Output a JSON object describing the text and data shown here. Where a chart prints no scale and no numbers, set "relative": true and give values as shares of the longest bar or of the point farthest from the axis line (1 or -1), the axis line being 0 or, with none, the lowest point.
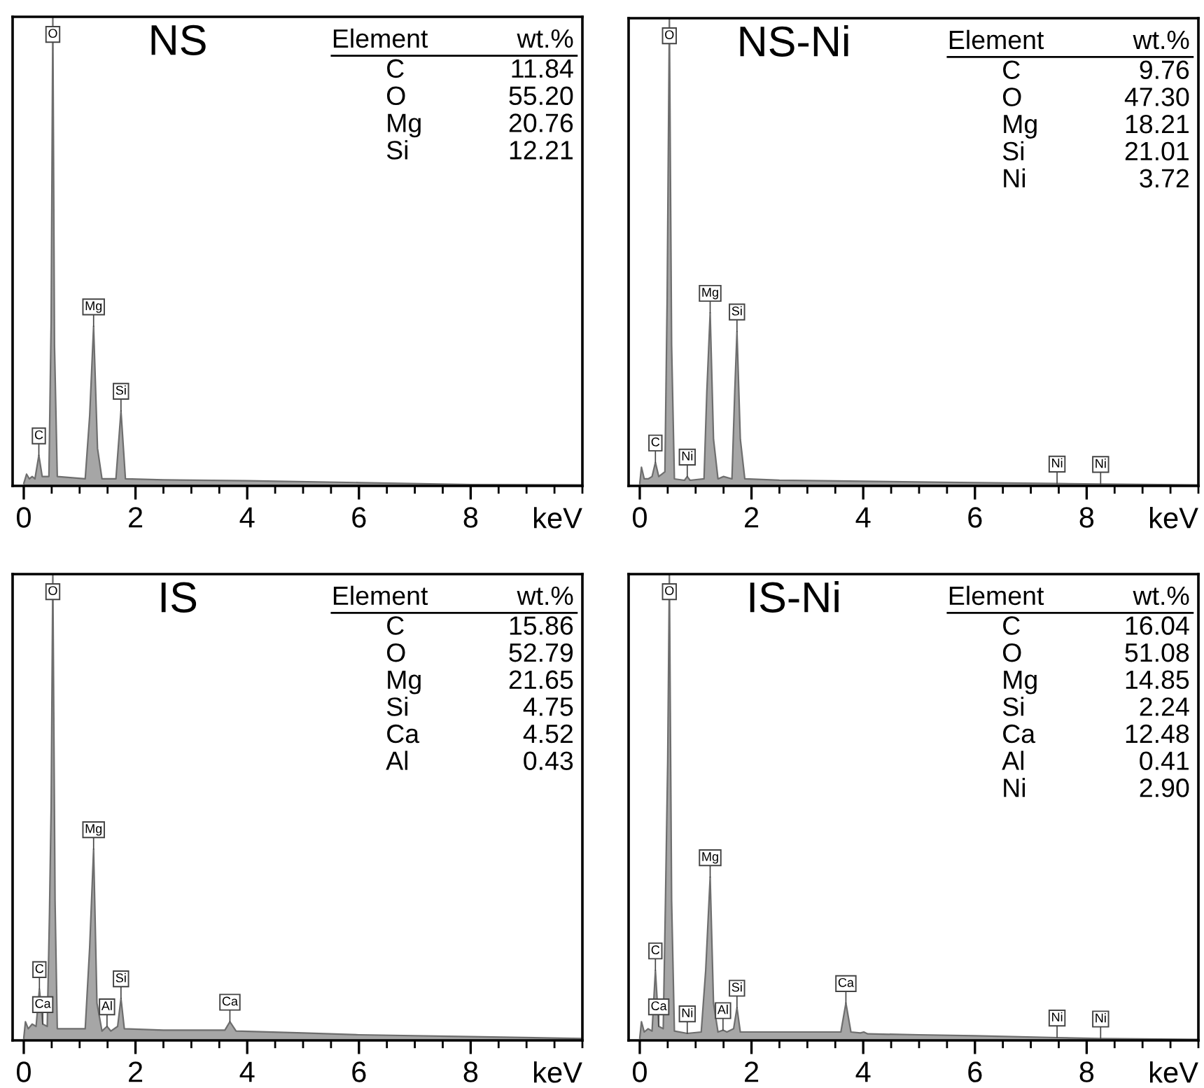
{
  "chart_data": [
    {
      "type": "area",
      "title": "NS",
      "relative": true,
      "xlabel": "keV",
      "xlim": [
        -0.2,
        10
      ],
      "xticks": [
        0,
        2,
        4,
        6,
        8
      ],
      "tick_labels": "x",
      "grid": false,
      "series": [
        {
          "color": "#a6a6a6",
          "x": [
            0,
            0.05,
            0.1,
            0.15,
            0.2,
            0.27,
            0.33,
            0.45,
            0.49,
            0.52,
            0.55,
            0.6,
            1.1,
            1.18,
            1.25,
            1.32,
            1.4,
            1.65,
            1.74,
            1.82,
            2.5,
            4,
            6,
            8,
            10
          ],
          "values": [
            0.005,
            0.025,
            0.015,
            0.02,
            0.015,
            0.065,
            0.02,
            0.02,
            0.35,
            1.0,
            0.3,
            0.02,
            0.015,
            0.15,
            0.34,
            0.08,
            0.015,
            0.015,
            0.16,
            0.015,
            0.013,
            0.011,
            0.007,
            0.003,
            0.002
          ]
        }
      ],
      "annotations": [
        {
          "text": "O",
          "x": 0.52,
          "y": 1.0
        },
        {
          "text": "C",
          "x": 0.27,
          "y": 0.065
        },
        {
          "text": "Mg",
          "x": 1.25,
          "y": 0.34
        },
        {
          "text": "Si",
          "x": 1.74,
          "y": 0.16
        },
        "Element",
        "wt.%",
        "C",
        "11.84",
        "O",
        "55.20",
        "Mg",
        "20.76",
        "Si",
        "12.21"
      ]
    },
    {
      "type": "area",
      "title": "NS-Ni",
      "relative": true,
      "xlabel": "keV",
      "xlim": [
        -0.2,
        10
      ],
      "xticks": [
        0,
        2,
        4,
        6,
        8
      ],
      "tick_labels": "x",
      "grid": false,
      "series": [
        {
          "color": "#a6a6a6",
          "x": [
            0,
            0.03,
            0.08,
            0.15,
            0.22,
            0.28,
            0.34,
            0.45,
            0.49,
            0.53,
            0.57,
            0.62,
            0.8,
            0.85,
            0.9,
            1.15,
            1.2,
            1.26,
            1.32,
            1.4,
            1.5,
            1.65,
            1.7,
            1.74,
            1.8,
            1.88,
            2.5,
            4,
            6,
            7.47,
            8.25,
            10
          ],
          "values": [
            0.005,
            0.04,
            0.015,
            0.015,
            0.02,
            0.05,
            0.02,
            0.03,
            0.4,
            1.0,
            0.3,
            0.015,
            0.012,
            0.02,
            0.012,
            0.015,
            0.2,
            0.37,
            0.1,
            0.015,
            0.02,
            0.015,
            0.2,
            0.33,
            0.1,
            0.015,
            0.012,
            0.01,
            0.007,
            0.005,
            0.004,
            0.002
          ]
        }
      ],
      "annotations": [
        {
          "text": "O",
          "x": 0.53,
          "y": 1.0
        },
        {
          "text": "C",
          "x": 0.28,
          "y": 0.05
        },
        {
          "text": "Ni",
          "x": 0.85,
          "y": 0.02
        },
        {
          "text": "Mg",
          "x": 1.26,
          "y": 0.37
        },
        {
          "text": "Si",
          "x": 1.74,
          "y": 0.33
        },
        {
          "text": "Ni",
          "x": 7.47,
          "y": 0.005
        },
        {
          "text": "Ni",
          "x": 8.25,
          "y": 0.004
        },
        "Element",
        "wt.%",
        "C",
        "9.76",
        "O",
        "47.30",
        "Mg",
        "18.21",
        "Si",
        "21.01",
        "Ni",
        "3.72"
      ]
    },
    {
      "type": "area",
      "title": "IS",
      "relative": true,
      "xlabel": "keV",
      "xlim": [
        -0.2,
        10
      ],
      "xticks": [
        0,
        2,
        4,
        6,
        8
      ],
      "tick_labels": "x",
      "grid": false,
      "series": [
        {
          "color": "#a6a6a6",
          "x": [
            0,
            0.03,
            0.08,
            0.15,
            0.22,
            0.28,
            0.34,
            0.42,
            0.46,
            0.49,
            0.52,
            0.56,
            0.6,
            1.1,
            1.18,
            1.25,
            1.31,
            1.4,
            1.49,
            1.56,
            1.68,
            1.74,
            1.8,
            2.5,
            3.6,
            3.69,
            3.8,
            5,
            6,
            8,
            10
          ],
          "values": [
            0.005,
            0.04,
            0.025,
            0.035,
            0.03,
            0.11,
            0.035,
            0.03,
            0.27,
            0.5,
            1.0,
            0.3,
            0.025,
            0.025,
            0.2,
            0.41,
            0.08,
            0.02,
            0.03,
            0.02,
            0.03,
            0.09,
            0.025,
            0.022,
            0.022,
            0.04,
            0.02,
            0.016,
            0.012,
            0.008,
            0.004
          ]
        }
      ],
      "annotations": [
        {
          "text": "O",
          "x": 0.52,
          "y": 1.0
        },
        {
          "text": "C",
          "x": 0.28,
          "y": 0.11
        },
        {
          "text": "Ca",
          "x": 0.34,
          "y": 0.035
        },
        {
          "text": "Mg",
          "x": 1.25,
          "y": 0.41
        },
        {
          "text": "Al",
          "x": 1.49,
          "y": 0.03
        },
        {
          "text": "Si",
          "x": 1.74,
          "y": 0.09
        },
        {
          "text": "Ca",
          "x": 3.69,
          "y": 0.04
        },
        "Element",
        "wt.%",
        "C",
        "15.86",
        "O",
        "52.79",
        "Mg",
        "21.65",
        "Si",
        "4.75",
        "Ca",
        "4.52",
        "Al",
        "0.43"
      ]
    },
    {
      "type": "area",
      "title": "IS-Ni",
      "relative": true,
      "xlabel": "keV",
      "xlim": [
        -0.2,
        10
      ],
      "xticks": [
        0,
        2,
        4,
        6,
        8
      ],
      "tick_labels": "x",
      "grid": false,
      "series": [
        {
          "color": "#a6a6a6",
          "x": [
            0,
            0.03,
            0.08,
            0.15,
            0.22,
            0.28,
            0.34,
            0.42,
            0.46,
            0.5,
            0.53,
            0.57,
            0.62,
            0.85,
            1.1,
            1.18,
            1.26,
            1.32,
            1.4,
            1.49,
            1.56,
            1.68,
            1.74,
            1.8,
            2.5,
            3.6,
            3.69,
            3.78,
            3.95,
            4.01,
            4.08,
            5,
            6,
            7.47,
            8.25,
            10
          ],
          "values": [
            0.005,
            0.04,
            0.018,
            0.025,
            0.02,
            0.15,
            0.03,
            0.025,
            0.3,
            0.6,
            1.0,
            0.3,
            0.02,
            0.015,
            0.018,
            0.15,
            0.35,
            0.08,
            0.018,
            0.022,
            0.018,
            0.025,
            0.07,
            0.018,
            0.018,
            0.018,
            0.08,
            0.018,
            0.016,
            0.018,
            0.014,
            0.012,
            0.01,
            0.006,
            0.004,
            0.002
          ]
        }
      ],
      "annotations": [
        {
          "text": "O",
          "x": 0.53,
          "y": 1.0
        },
        {
          "text": "C",
          "x": 0.28,
          "y": 0.15
        },
        {
          "text": "Ca",
          "x": 0.34,
          "y": 0.03
        },
        {
          "text": "Ni",
          "x": 0.85,
          "y": 0.015
        },
        {
          "text": "Mg",
          "x": 1.26,
          "y": 0.35
        },
        {
          "text": "Al",
          "x": 1.49,
          "y": 0.022
        },
        {
          "text": "Si",
          "x": 1.74,
          "y": 0.07
        },
        {
          "text": "Ca",
          "x": 3.69,
          "y": 0.08
        },
        {
          "text": "Ni",
          "x": 7.47,
          "y": 0.006
        },
        {
          "text": "Ni",
          "x": 8.25,
          "y": 0.004
        },
        "Element",
        "wt.%",
        "C",
        "16.04",
        "O",
        "51.08",
        "Mg",
        "14.85",
        "Si",
        "2.24",
        "Ca",
        "12.48",
        "Al",
        "0.41",
        "Ni",
        "2.90"
      ]
    }
  ]
}
